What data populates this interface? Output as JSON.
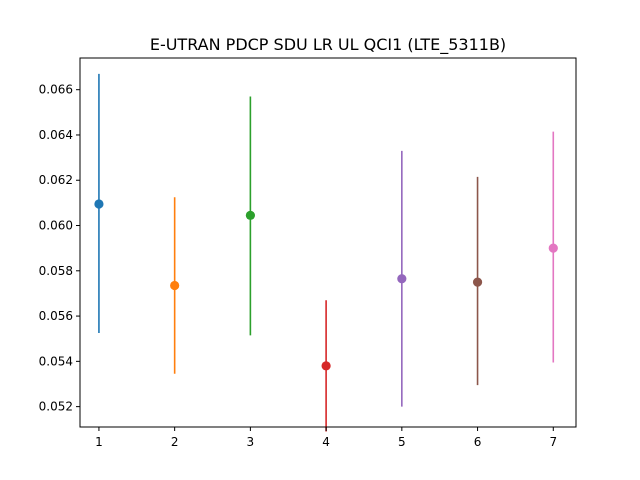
{
  "chart_data": {
    "type": "errorbar",
    "title": "E-UTRAN PDCP SDU LR UL QCI1 (LTE_5311B)",
    "xlabel": "",
    "ylabel": "",
    "xlim": [
      0.75,
      7.3
    ],
    "ylim": [
      0.0511,
      0.0674
    ],
    "x_ticks": [
      1,
      2,
      3,
      4,
      5,
      6,
      7
    ],
    "x_tick_labels": [
      "1",
      "2",
      "3",
      "4",
      "5",
      "6",
      "7"
    ],
    "y_ticks": [
      0.052,
      0.054,
      0.056,
      0.058,
      0.06,
      0.062,
      0.064,
      0.066
    ],
    "y_tick_labels": [
      "0.052",
      "0.054",
      "0.056",
      "0.058",
      "0.060",
      "0.062",
      "0.064",
      "0.066"
    ],
    "grid": false,
    "points": [
      {
        "x": 1,
        "y": 0.06095,
        "low": 0.05525,
        "high": 0.0667,
        "color": "#1f77b4"
      },
      {
        "x": 2,
        "y": 0.05735,
        "low": 0.05345,
        "high": 0.06125,
        "color": "#ff7f0e"
      },
      {
        "x": 3,
        "y": 0.06045,
        "low": 0.05515,
        "high": 0.0657,
        "color": "#2ca02c"
      },
      {
        "x": 4,
        "y": 0.0538,
        "low": 0.0509,
        "high": 0.0567,
        "color": "#d62728"
      },
      {
        "x": 5,
        "y": 0.05765,
        "low": 0.052,
        "high": 0.0633,
        "color": "#9467bd"
      },
      {
        "x": 6,
        "y": 0.0575,
        "low": 0.05295,
        "high": 0.06215,
        "color": "#8c564b"
      },
      {
        "x": 7,
        "y": 0.059,
        "low": 0.05395,
        "high": 0.06415,
        "color": "#e377c2"
      }
    ]
  }
}
